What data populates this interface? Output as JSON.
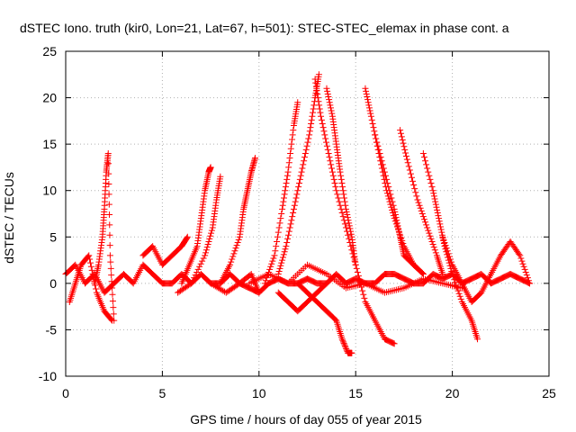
{
  "chart_data": {
    "type": "scatter",
    "title": "dSTEC Iono. truth (kir0, Lon=21, Lat=67, h=501): STEC-STEC_elemax in phase cont. a",
    "xlabel": "GPS time / hours of day 055 of year 2015",
    "ylabel": "dSTEC  / TECUs",
    "xlim": [
      0,
      25
    ],
    "ylim": [
      -10,
      25
    ],
    "xticks": [
      0,
      5,
      10,
      15,
      20,
      25
    ],
    "yticks": [
      -10,
      -5,
      0,
      5,
      10,
      15,
      20,
      25
    ],
    "grid": true,
    "marker": "+",
    "color": "#ff0000",
    "series": [
      {
        "x": [
          0,
          0.5,
          1,
          1.5,
          2,
          2.5,
          3,
          3.5,
          4,
          4.5,
          5,
          5.5,
          6,
          6.5,
          7,
          7.5,
          8,
          8.5,
          9,
          9.5,
          10,
          10.5,
          11,
          11.5,
          12,
          12.5,
          13,
          13.5,
          14,
          14.5,
          15,
          15.5,
          16,
          16.5,
          17,
          17.5,
          18,
          18.5,
          19,
          19.5,
          20,
          20.5,
          21,
          21.5,
          22,
          22.5,
          23,
          23.5,
          24
        ],
        "y": [
          1,
          2,
          0,
          1,
          -1,
          0,
          1,
          0,
          2,
          1,
          0,
          0,
          1,
          0,
          1,
          0,
          0,
          1,
          0,
          -0.5,
          -1,
          0,
          0.5,
          0,
          0,
          0.5,
          0,
          0,
          1,
          0,
          0.5,
          0,
          0,
          1,
          1,
          0.5,
          0,
          0,
          1,
          0.5,
          1,
          0,
          0.5,
          1,
          0,
          0.5,
          1,
          0.5,
          0
        ]
      },
      {
        "x": [
          1.5,
          1.7,
          1.9,
          2.0,
          2.1,
          2.2,
          2.3,
          2.5
        ],
        "y": [
          0,
          2,
          5,
          8,
          12,
          14,
          3,
          -4
        ]
      },
      {
        "x": [
          0.2,
          0.5,
          0.8,
          1.2,
          1.6,
          2.0,
          2.4
        ],
        "y": [
          -2,
          0,
          2,
          3,
          -1,
          -3,
          -4
        ]
      },
      {
        "x": [
          4,
          4.5,
          5,
          5.5,
          6,
          6.3
        ],
        "y": [
          3,
          4,
          2,
          3,
          4,
          5
        ]
      },
      {
        "x": [
          6.0,
          6.4,
          6.8,
          7.0,
          7.2,
          7.4,
          7.5
        ],
        "y": [
          0,
          2,
          4,
          7,
          10,
          12,
          12.5
        ]
      },
      {
        "x": [
          5.8,
          6.5,
          7.2,
          7.6,
          7.8,
          8.0
        ],
        "y": [
          -1,
          0,
          3,
          6,
          9,
          11.5
        ]
      },
      {
        "x": [
          8.0,
          8.5,
          9.0,
          9.2,
          9.4,
          9.6,
          9.8
        ],
        "y": [
          0,
          2,
          5,
          8,
          10,
          12,
          13.5
        ]
      },
      {
        "x": [
          7.5,
          8.3,
          9.0,
          9.6,
          10.0
        ],
        "y": [
          0,
          -1,
          0,
          1,
          -1
        ]
      },
      {
        "x": [
          10.3,
          10.8,
          11.2,
          11.5,
          11.8,
          12.0
        ],
        "y": [
          0,
          3,
          8,
          12,
          17,
          19.5
        ]
      },
      {
        "x": [
          11.0,
          11.4,
          11.8,
          12.2,
          12.6,
          12.9,
          13.1
        ],
        "y": [
          1,
          4,
          8,
          12,
          16,
          20,
          22.5
        ]
      },
      {
        "x": [
          12.9,
          13.2,
          13.6,
          14.0,
          14.5,
          15.0,
          15.5,
          16.0,
          16.5,
          17.0
        ],
        "y": [
          22,
          18,
          14,
          10,
          6,
          2,
          -2,
          -4,
          -6,
          -6.5
        ]
      },
      {
        "x": [
          13.5,
          13.8,
          14.0,
          14.2,
          14.5,
          14.8,
          15.0
        ],
        "y": [
          21,
          18,
          15,
          12,
          8,
          5,
          2
        ]
      },
      {
        "x": [
          12.0,
          12.5,
          13.0,
          13.5,
          14.0,
          14.3,
          14.6,
          14.8
        ],
        "y": [
          0,
          -1,
          -2,
          -3,
          -4,
          -6,
          -7.5,
          -7.5
        ]
      },
      {
        "x": [
          15.5,
          15.8,
          16.2,
          16.6,
          17.0,
          17.5,
          18.0,
          18.5
        ],
        "y": [
          21,
          18,
          14,
          10,
          7,
          4,
          2,
          1
        ]
      },
      {
        "x": [
          16.0,
          16.5,
          17.0,
          17.3,
          17.5,
          18.0,
          18.5
        ],
        "y": [
          16,
          12,
          8,
          5,
          3,
          2,
          1
        ]
      },
      {
        "x": [
          17.3,
          17.7,
          18.2,
          18.7,
          19.2,
          19.5
        ],
        "y": [
          16.5,
          13,
          9,
          6,
          3,
          1
        ]
      },
      {
        "x": [
          18.5,
          19.0,
          19.3,
          19.6,
          20.0,
          20.5,
          21.0,
          21.3
        ],
        "y": [
          14,
          10,
          7,
          4,
          1,
          -2,
          -4,
          -6
        ]
      },
      {
        "x": [
          19.5,
          20.0,
          20.5,
          21.0,
          21.5,
          22.0,
          22.5,
          23.0,
          23.5,
          24.0
        ],
        "y": [
          5,
          2,
          0,
          -2,
          -1,
          1,
          3,
          4.5,
          3,
          0
        ]
      },
      {
        "x": [
          11.0,
          11.5,
          12.0,
          12.5,
          13.0,
          13.5
        ],
        "y": [
          -1,
          -2,
          -3,
          -2,
          -1,
          0
        ]
      },
      {
        "x": [
          9.5,
          10.5,
          11.5,
          12.5,
          13.5,
          14.5,
          15.5,
          16.5,
          17.5,
          18.5,
          19.5,
          20.5
        ],
        "y": [
          0,
          1,
          0,
          2,
          1,
          -0.5,
          0,
          -1,
          -0.5,
          0.5,
          0,
          -0.5
        ]
      }
    ]
  }
}
